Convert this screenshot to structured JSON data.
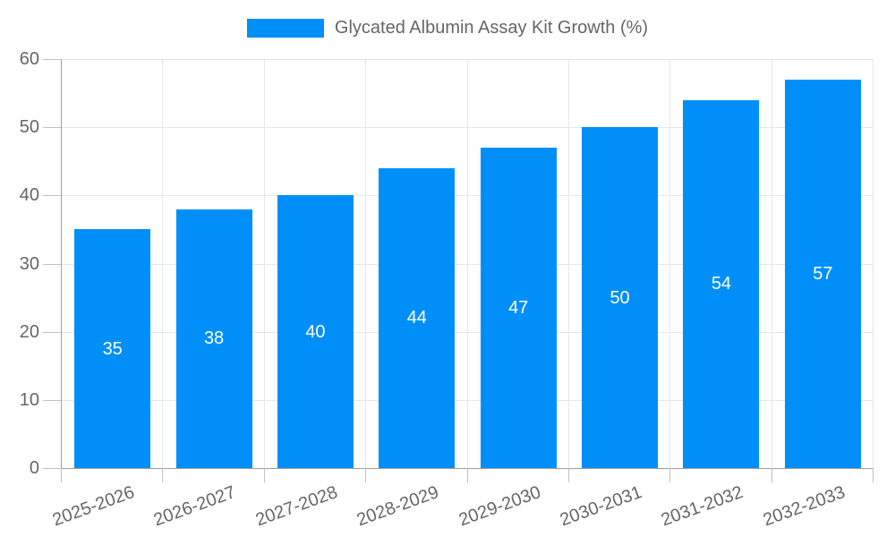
{
  "legend": {
    "label": "Glycated Albumin Assay Kit Growth (%)"
  },
  "chart_data": {
    "type": "bar",
    "title": "Glycated Albumin Assay Kit Growth (%)",
    "categories": [
      "2025-2026",
      "2026-2027",
      "2027-2028",
      "2028-2029",
      "2029-2030",
      "2030-2031",
      "2031-2032",
      "2032-2033"
    ],
    "series": [
      {
        "name": "Glycated Albumin Assay Kit Growth (%)",
        "values": [
          35,
          38,
          40,
          44,
          47,
          50,
          54,
          57
        ]
      }
    ],
    "value_labels": [
      "35",
      "38",
      "40",
      "44",
      "47",
      "50",
      "54",
      "57"
    ],
    "xlabel": "",
    "ylabel": "",
    "ylim": [
      0,
      60
    ],
    "yticks": [
      0,
      10,
      20,
      30,
      40,
      50,
      60
    ],
    "grid": true,
    "legend_position": "top",
    "x_tick_rotation_deg": -20
  },
  "colors": {
    "bar": "#008FF8",
    "value_label": "#FFFFFF",
    "axis_line": "#9E9E9E",
    "tick_mark": "#C2C2C2",
    "gridline": "#E7E7E7",
    "tick_text": "#666666",
    "legend_text": "#666666",
    "background": "#FFFFFF"
  }
}
